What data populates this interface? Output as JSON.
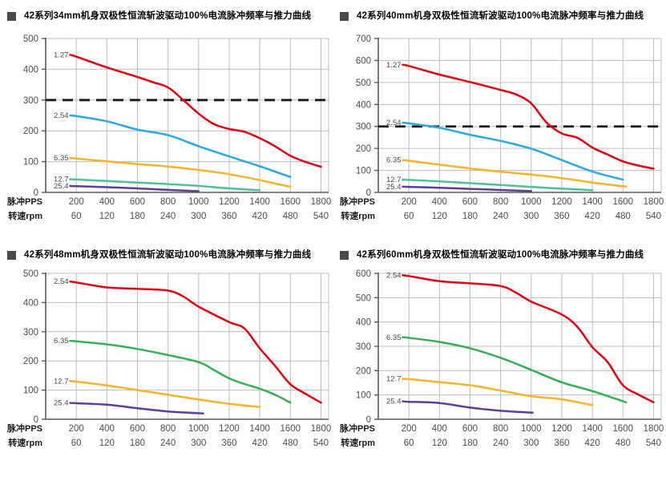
{
  "page": {
    "background": "#ffffff"
  },
  "colors": {
    "grid": "#bcbcbc",
    "axis": "#595959",
    "reference_dash": "#1a1a1a",
    "tick_text": "#4d4d4d",
    "curve_label_text": "#4a4a4a",
    "title_text": "#000000",
    "bullet": "#4a4a4a",
    "red": "#e60012",
    "cyan": "#29a9e1",
    "yellow": "#f7b32a",
    "teal": "#4fbfa0",
    "green": "#33b054",
    "purple": "#5f3e97"
  },
  "x_axis": {
    "header_line1": "脉冲PPS",
    "header_line2": "转速rpm",
    "pps_ticks": [
      200,
      400,
      600,
      800,
      1000,
      1200,
      1400,
      1600,
      1800
    ],
    "rpm_ticks": [
      60,
      120,
      180,
      240,
      300,
      360,
      420,
      480,
      540
    ],
    "xlim": [
      0,
      1850
    ]
  },
  "chart_data": [
    {
      "type": "line",
      "title": "42系列34mm机身双极性恒流斩波驱动100%电流脉冲频率与推力曲线",
      "ylim": [
        0,
        500
      ],
      "ytick_step": 100,
      "grid": true,
      "reference_line": 300,
      "legend_position": "inline-left",
      "series": [
        {
          "name": "1.27",
          "color": "#e60012",
          "points": [
            [
              160,
              447
            ],
            [
              200,
              441
            ],
            [
              400,
              406
            ],
            [
              600,
              375
            ],
            [
              700,
              358
            ],
            [
              800,
              341
            ],
            [
              900,
              300
            ],
            [
              1000,
              256
            ],
            [
              1100,
              222
            ],
            [
              1200,
              206
            ],
            [
              1300,
              197
            ],
            [
              1400,
              176
            ],
            [
              1500,
              150
            ],
            [
              1600,
              119
            ],
            [
              1700,
              99
            ],
            [
              1800,
              83
            ]
          ]
        },
        {
          "name": "2.54",
          "color": "#29a9e1",
          "points": [
            [
              160,
              250
            ],
            [
              200,
              248
            ],
            [
              400,
              231
            ],
            [
              600,
              204
            ],
            [
              800,
              186
            ],
            [
              1000,
              150
            ],
            [
              1200,
              117
            ],
            [
              1400,
              85
            ],
            [
              1600,
              50
            ]
          ]
        },
        {
          "name": "6.35",
          "color": "#f7b32a",
          "points": [
            [
              160,
              112
            ],
            [
              200,
              110
            ],
            [
              400,
              101
            ],
            [
              600,
              92
            ],
            [
              800,
              84
            ],
            [
              1000,
              73
            ],
            [
              1200,
              59
            ],
            [
              1400,
              40
            ],
            [
              1600,
              18
            ]
          ]
        },
        {
          "name": "12.7",
          "color": "#4fbfa0",
          "points": [
            [
              160,
              43
            ],
            [
              200,
              42
            ],
            [
              400,
              37
            ],
            [
              600,
              32
            ],
            [
              800,
              27
            ],
            [
              1000,
              21
            ],
            [
              1200,
              13
            ],
            [
              1400,
              7
            ]
          ]
        },
        {
          "name": "25.4",
          "color": "#5f3e97",
          "points": [
            [
              160,
              21
            ],
            [
              200,
              20
            ],
            [
              400,
              17
            ],
            [
              600,
              13
            ],
            [
              800,
              8
            ],
            [
              1000,
              4
            ]
          ]
        }
      ]
    },
    {
      "type": "line",
      "title": "42系列40mm机身双极性恒流斩波驱动100%电流脉冲频率与推力曲线",
      "ylim": [
        0,
        700
      ],
      "ytick_step": 100,
      "grid": true,
      "reference_line": 300,
      "legend_position": "inline-left",
      "series": [
        {
          "name": "1.27",
          "color": "#e60012",
          "points": [
            [
              160,
              580
            ],
            [
              200,
              575
            ],
            [
              400,
              536
            ],
            [
              600,
              502
            ],
            [
              800,
              466
            ],
            [
              900,
              446
            ],
            [
              1000,
              405
            ],
            [
              1100,
              318
            ],
            [
              1200,
              268
            ],
            [
              1300,
              249
            ],
            [
              1400,
              204
            ],
            [
              1500,
              172
            ],
            [
              1600,
              141
            ],
            [
              1700,
              122
            ],
            [
              1800,
              108
            ]
          ]
        },
        {
          "name": "2.54",
          "color": "#29a9e1",
          "points": [
            [
              160,
              317
            ],
            [
              200,
              314
            ],
            [
              400,
              294
            ],
            [
              600,
              262
            ],
            [
              800,
              234
            ],
            [
              1000,
              199
            ],
            [
              1200,
              147
            ],
            [
              1400,
              95
            ],
            [
              1600,
              58
            ]
          ]
        },
        {
          "name": "6.35",
          "color": "#f7b32a",
          "points": [
            [
              160,
              147
            ],
            [
              200,
              144
            ],
            [
              400,
              126
            ],
            [
              600,
              109
            ],
            [
              800,
              94
            ],
            [
              1000,
              81
            ],
            [
              1200,
              65
            ],
            [
              1400,
              45
            ],
            [
              1620,
              26
            ]
          ]
        },
        {
          "name": "12.7",
          "color": "#4fbfa0",
          "points": [
            [
              160,
              58
            ],
            [
              200,
              57
            ],
            [
              400,
              50
            ],
            [
              600,
              42
            ],
            [
              800,
              34
            ],
            [
              1000,
              25
            ],
            [
              1200,
              17
            ],
            [
              1400,
              10
            ]
          ]
        },
        {
          "name": "25.4",
          "color": "#5f3e97",
          "points": [
            [
              160,
              26
            ],
            [
              200,
              25
            ],
            [
              400,
              21
            ],
            [
              600,
              16
            ],
            [
              800,
              11
            ],
            [
              1000,
              6
            ]
          ]
        }
      ]
    },
    {
      "type": "line",
      "title": "42系列48mm机身双极性恒流斩波驱动100%电流脉冲频率与推力曲线",
      "ylim": [
        0,
        500
      ],
      "ytick_step": 100,
      "grid": true,
      "reference_line": null,
      "legend_position": "inline-left",
      "series": [
        {
          "name": "2.54",
          "color": "#e60012",
          "points": [
            [
              160,
              472
            ],
            [
              200,
              469
            ],
            [
              400,
              452
            ],
            [
              600,
              447
            ],
            [
              800,
              441
            ],
            [
              900,
              421
            ],
            [
              1000,
              386
            ],
            [
              1200,
              333
            ],
            [
              1300,
              311
            ],
            [
              1400,
              243
            ],
            [
              1500,
              183
            ],
            [
              1600,
              120
            ],
            [
              1700,
              87
            ],
            [
              1800,
              57
            ]
          ]
        },
        {
          "name": "6.35",
          "color": "#33b054",
          "points": [
            [
              160,
              269
            ],
            [
              200,
              267
            ],
            [
              400,
              257
            ],
            [
              600,
              241
            ],
            [
              800,
              220
            ],
            [
              1000,
              196
            ],
            [
              1100,
              169
            ],
            [
              1200,
              140
            ],
            [
              1300,
              121
            ],
            [
              1400,
              105
            ],
            [
              1500,
              84
            ],
            [
              1600,
              57
            ]
          ]
        },
        {
          "name": "12.7",
          "color": "#f7b32a",
          "points": [
            [
              160,
              131
            ],
            [
              200,
              129
            ],
            [
              400,
              116
            ],
            [
              600,
              100
            ],
            [
              800,
              84
            ],
            [
              1000,
              68
            ],
            [
              1200,
              53
            ],
            [
              1400,
              42
            ]
          ]
        },
        {
          "name": "25.4",
          "color": "#5f3e97",
          "points": [
            [
              160,
              56
            ],
            [
              200,
              55
            ],
            [
              400,
              50
            ],
            [
              600,
              38
            ],
            [
              800,
              27
            ],
            [
              1030,
              20
            ]
          ]
        }
      ]
    },
    {
      "type": "line",
      "title": "42系列60mm机身双极性恒流斩波驱动100%电流脉冲频率与推力曲线",
      "ylim": [
        0,
        600
      ],
      "ytick_step": 100,
      "grid": true,
      "reference_line": null,
      "legend_position": "inline-left",
      "stray_mark": {
        "text": "1",
        "pps": 1375,
        "value": 295
      },
      "series": [
        {
          "name": "2.54",
          "color": "#e60012",
          "points": [
            [
              160,
              592
            ],
            [
              200,
              589
            ],
            [
              400,
              568
            ],
            [
              600,
              559
            ],
            [
              800,
              548
            ],
            [
              900,
              521
            ],
            [
              1000,
              484
            ],
            [
              1200,
              431
            ],
            [
              1300,
              381
            ],
            [
              1400,
              297
            ],
            [
              1500,
              235
            ],
            [
              1600,
              140
            ],
            [
              1700,
              102
            ],
            [
              1800,
              70
            ]
          ]
        },
        {
          "name": "6.35",
          "color": "#33b054",
          "points": [
            [
              160,
              337
            ],
            [
              200,
              335
            ],
            [
              400,
              318
            ],
            [
              600,
              292
            ],
            [
              800,
              253
            ],
            [
              1000,
              203
            ],
            [
              1200,
              152
            ],
            [
              1400,
              116
            ],
            [
              1620,
              70
            ]
          ]
        },
        {
          "name": "12.7",
          "color": "#f7b32a",
          "points": [
            [
              160,
              166
            ],
            [
              200,
              165
            ],
            [
              400,
              153
            ],
            [
              600,
              140
            ],
            [
              800,
              118
            ],
            [
              1000,
              95
            ],
            [
              1200,
              82
            ],
            [
              1400,
              58
            ]
          ]
        },
        {
          "name": "25.4",
          "color": "#5f3e97",
          "points": [
            [
              160,
              74
            ],
            [
              200,
              72
            ],
            [
              400,
              67
            ],
            [
              600,
              48
            ],
            [
              800,
              35
            ],
            [
              1010,
              27
            ]
          ]
        }
      ]
    }
  ]
}
